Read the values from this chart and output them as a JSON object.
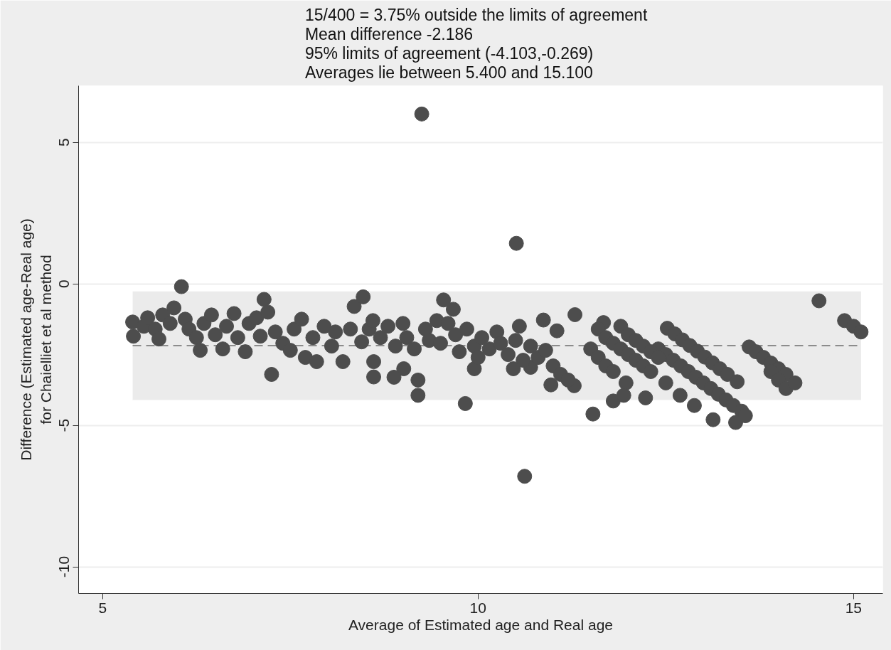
{
  "chart_data": {
    "type": "scatter",
    "title": "15/400 =   3.75% outside the limits of agreement\nMean difference -2.186\n95% limits of agreement (-4.103,-0.269)\nAverages lie between 5.400 and 15.100",
    "xlabel": "Average of Estimated age and Real age",
    "ylabel": "Difference (Estimated age-Real age)\nfor Chaielliet et al method",
    "xlim": [
      4.68,
      15.39
    ],
    "ylim": [
      -10.94,
      7.0
    ],
    "xticks": [
      5,
      10,
      15
    ],
    "yticks": [
      -10,
      -5,
      0,
      5
    ],
    "grid": "y",
    "marker": "circle",
    "ref_lines": [
      {
        "axis": "y",
        "value": -2.186,
        "label": null,
        "color": "#8c8c8c",
        "line_style": "dashed"
      }
    ],
    "bands": [
      {
        "axis": "y",
        "from": -4.103,
        "to": -0.269,
        "label": null,
        "color": "#ebebeb"
      }
    ],
    "series": [
      {
        "color": "#4d4d4d",
        "x": [
          5.4,
          5.41,
          5.55,
          5.6,
          5.7,
          5.75,
          5.8,
          5.9,
          5.95,
          6.05,
          6.1,
          6.15,
          6.25,
          6.3,
          6.35,
          6.45,
          6.5,
          6.6,
          6.65,
          6.75,
          6.8,
          6.9,
          6.95,
          7.05,
          7.1,
          7.15,
          7.2,
          7.25,
          7.3,
          7.4,
          7.5,
          7.55,
          7.65,
          7.7,
          7.8,
          7.85,
          7.95,
          8.05,
          8.1,
          8.2,
          8.3,
          8.35,
          8.45,
          8.55,
          8.47,
          9.25,
          10.51,
          10.62,
          9.83,
          8.61,
          9.2,
          9.2,
          9.01,
          8.88,
          8.61,
          11.53,
          11.28,
          9.54,
          9.67,
          10.87,
          11.05,
          11.29,
          11.67,
          10.47,
          9.95,
          10.7,
          10.97,
          11.8,
          8.6,
          8.7,
          8.8,
          8.9,
          9.0,
          9.05,
          9.15,
          9.3,
          9.35,
          9.45,
          9.5,
          9.6,
          9.7,
          9.75,
          9.85,
          9.95,
          10.0,
          10.05,
          10.15,
          10.25,
          10.3,
          10.4,
          10.5,
          10.55,
          10.6,
          10.7,
          10.8,
          10.9,
          11.0,
          11.1,
          11.2,
          14.54,
          14.88,
          15.0,
          15.1,
          12.52,
          12.62,
          12.72,
          12.82,
          12.92,
          13.02,
          13.12,
          13.22,
          13.32,
          13.45,
          12.4,
          12.5,
          12.6,
          12.7,
          12.8,
          12.9,
          13.0,
          13.1,
          13.2,
          13.3,
          13.4,
          13.51,
          13.61,
          13.7,
          13.8,
          13.9,
          14.0,
          14.1,
          13.9,
          14.0,
          14.1,
          14.22,
          13.13,
          13.43,
          13.56,
          12.88,
          12.69,
          12.5,
          12.23,
          11.97,
          11.94,
          11.6,
          11.7,
          11.8,
          11.9,
          12.0,
          12.1,
          12.2,
          12.3,
          11.9,
          12.0,
          12.1,
          12.2,
          12.3,
          12.4,
          11.5,
          11.6,
          11.7,
          11.8
        ],
        "values": [
          -1.35,
          -1.85,
          -1.5,
          -1.2,
          -1.6,
          -1.95,
          -1.1,
          -1.4,
          -0.85,
          -0.1,
          -1.25,
          -1.6,
          -1.9,
          -2.35,
          -1.4,
          -1.1,
          -1.8,
          -2.3,
          -1.5,
          -1.05,
          -1.9,
          -2.4,
          -1.4,
          -1.2,
          -1.85,
          -0.55,
          -1.0,
          -3.2,
          -1.7,
          -2.1,
          -2.35,
          -1.6,
          -1.25,
          -2.6,
          -1.9,
          -2.75,
          -1.5,
          -2.2,
          -1.7,
          -2.75,
          -1.6,
          -0.8,
          -2.05,
          -1.6,
          -0.46,
          6.0,
          1.43,
          -6.8,
          -4.23,
          -3.29,
          -3.94,
          -3.4,
          -3.0,
          -3.3,
          -2.75,
          -4.6,
          -3.6,
          -0.57,
          -0.9,
          -1.28,
          -1.66,
          -1.09,
          -1.37,
          -3.0,
          -3.0,
          -2.95,
          -3.57,
          -4.14,
          -1.3,
          -1.9,
          -1.5,
          -2.2,
          -1.4,
          -1.9,
          -2.3,
          -1.6,
          -2.0,
          -1.3,
          -2.1,
          -1.4,
          -1.8,
          -2.4,
          -1.6,
          -2.2,
          -2.6,
          -1.9,
          -2.3,
          -1.7,
          -2.1,
          -2.5,
          -2.0,
          -1.5,
          -2.7,
          -2.2,
          -2.6,
          -2.35,
          -2.9,
          -3.2,
          -3.4,
          -0.6,
          -1.3,
          -1.5,
          -1.7,
          -1.57,
          -1.77,
          -1.98,
          -2.18,
          -2.38,
          -2.59,
          -2.79,
          -3.0,
          -3.2,
          -3.46,
          -2.3,
          -2.5,
          -2.7,
          -2.9,
          -3.1,
          -3.3,
          -3.5,
          -3.7,
          -3.9,
          -4.1,
          -4.3,
          -4.5,
          -2.23,
          -2.4,
          -2.6,
          -2.8,
          -3.0,
          -3.2,
          -3.1,
          -3.4,
          -3.7,
          -3.5,
          -4.8,
          -4.9,
          -4.66,
          -4.3,
          -3.94,
          -3.5,
          -4.03,
          -3.5,
          -3.94,
          -1.6,
          -1.9,
          -2.1,
          -2.3,
          -2.5,
          -2.7,
          -2.9,
          -3.1,
          -1.5,
          -1.8,
          -2.0,
          -2.2,
          -2.4,
          -2.6,
          -2.3,
          -2.6,
          -2.9,
          -3.1
        ]
      }
    ]
  }
}
